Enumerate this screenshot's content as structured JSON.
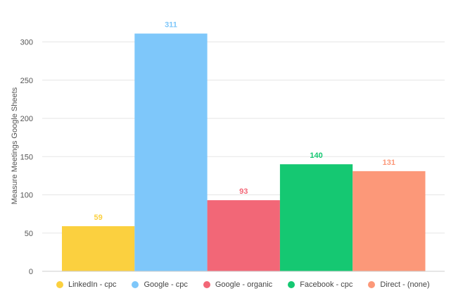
{
  "chart_data": {
    "type": "bar",
    "ylabel": "Measure Meetings Google Sheets",
    "ylim": [
      0,
      330
    ],
    "yticks": [
      0,
      50,
      100,
      150,
      200,
      250,
      300
    ],
    "grid": true,
    "legend_position": "bottom",
    "series": [
      {
        "name": "LinkedIn - cpc",
        "value": 59,
        "color": "#FBD03F"
      },
      {
        "name": "Google - cpc",
        "value": 311,
        "color": "#7EC7FA"
      },
      {
        "name": "Google - organic",
        "value": 93,
        "color": "#F26777"
      },
      {
        "name": "Facebook - cpc",
        "value": 140,
        "color": "#15C872"
      },
      {
        "name": "Direct - (none)",
        "value": 131,
        "color": "#FC9879"
      }
    ]
  }
}
